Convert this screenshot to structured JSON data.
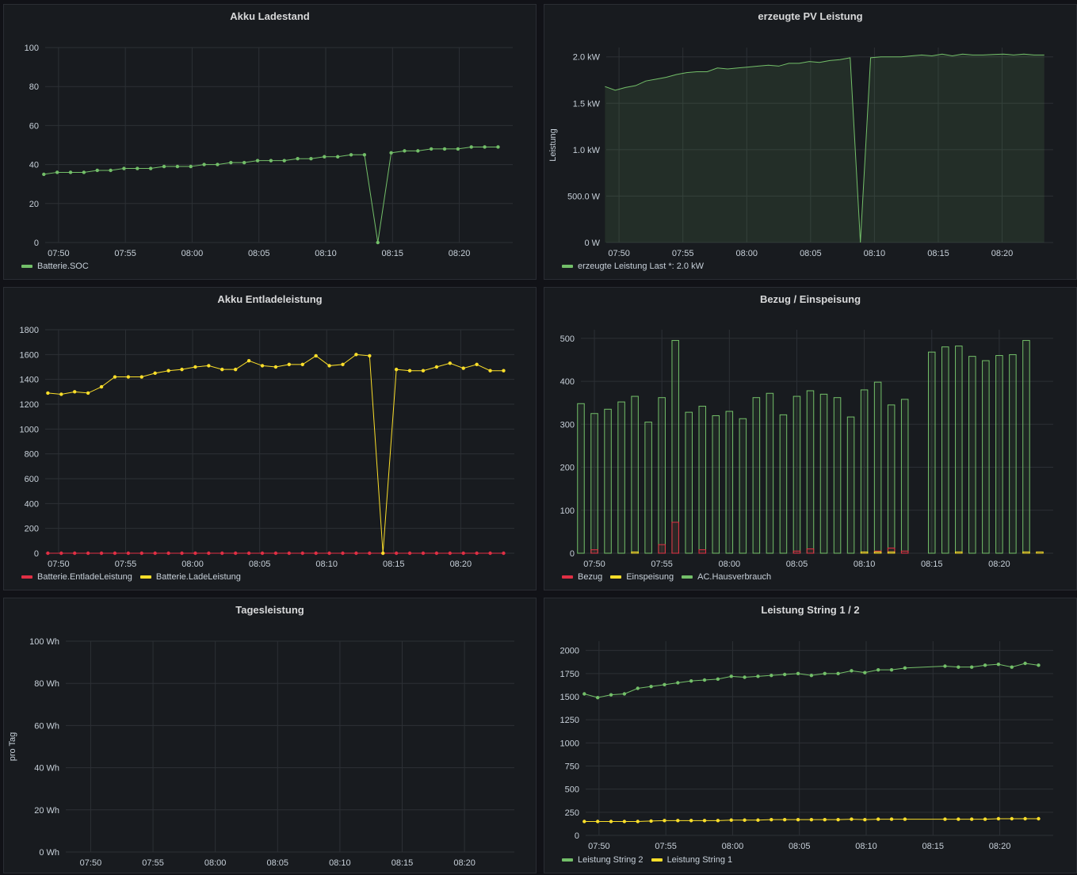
{
  "panels": [
    {
      "id": "p1",
      "title": "Akku Ladestand",
      "box": {
        "x": 4,
        "y": 5,
        "w": 673,
        "h": 348
      },
      "chart_data": {
        "type": "line",
        "title": "Akku Ladestand",
        "ylabel": "",
        "ylim": [
          0,
          100
        ],
        "yticks": [
          0,
          20,
          40,
          60,
          80,
          100
        ],
        "ytick_labels": [
          "0",
          "20",
          "40",
          "60",
          "80",
          "100"
        ],
        "xlim": [
          469,
          504
        ],
        "xticks": [
          470,
          475,
          480,
          485,
          490,
          495,
          500
        ],
        "xtick_labels": [
          "07:50",
          "07:55",
          "08:00",
          "08:05",
          "08:10",
          "08:15",
          "08:20"
        ],
        "legend_placement": "bottom-left",
        "series": [
          {
            "name": "Batterie.SOC",
            "color": "#73bf69",
            "points": true,
            "fill": false,
            "x": [
              468.9,
              469.9,
              470.9,
              471.9,
              472.9,
              473.9,
              474.9,
              475.9,
              476.9,
              477.9,
              478.9,
              479.9,
              480.9,
              481.9,
              482.9,
              483.9,
              484.9,
              485.9,
              486.9,
              487.9,
              488.9,
              489.9,
              490.9,
              491.9,
              492.9,
              493.9,
              494.9,
              495.9,
              496.9,
              497.9,
              498.9,
              499.9,
              500.9,
              501.9,
              502.9
            ],
            "y": [
              35,
              36,
              36,
              36,
              37,
              37,
              38,
              38,
              38,
              39,
              39,
              39,
              40,
              40,
              41,
              41,
              42,
              42,
              42,
              43,
              43,
              44,
              44,
              45,
              45,
              0,
              46,
              47,
              47,
              48,
              48,
              48,
              49,
              49,
              49
            ]
          }
        ]
      }
    },
    {
      "id": "p2",
      "title": "erzeugte PV Leistung",
      "box": {
        "x": 686,
        "y": 5,
        "w": 673,
        "h": 348
      },
      "chart_data": {
        "type": "area",
        "title": "erzeugte PV Leistung",
        "ylabel": "Leistung",
        "ylim": [
          0,
          2100
        ],
        "yticks": [
          0,
          500,
          1000,
          1500,
          2000
        ],
        "ytick_labels": [
          "0 W",
          "500.0 W",
          "1.0 kW",
          "1.5 kW",
          "2.0 kW"
        ],
        "xlim": [
          469,
          504
        ],
        "xticks": [
          470,
          475,
          480,
          485,
          490,
          495,
          500
        ],
        "xtick_labels": [
          "07:50",
          "07:55",
          "08:00",
          "08:05",
          "08:10",
          "08:15",
          "08:20"
        ],
        "legend_placement": "bottom-left",
        "series": [
          {
            "name": "erzeugte Leistung",
            "legend_extra": "Last *: 2.0 kW",
            "color": "#73bf69",
            "points": false,
            "fill": true,
            "x": [
              468.9,
              469.7,
              470.5,
              471.3,
              472.1,
              472.9,
              473.7,
              474.5,
              475.3,
              476.1,
              476.9,
              477.7,
              478.5,
              479.3,
              480.1,
              480.9,
              481.7,
              482.5,
              483.3,
              484.1,
              484.9,
              485.7,
              486.5,
              487.3,
              488.1,
              488.9,
              489.7,
              490.5,
              491.3,
              492.1,
              492.9,
              493.7,
              494.5,
              495.3,
              496.1,
              496.9,
              497.7,
              498.5,
              499.3,
              500.1,
              500.9,
              501.7,
              502.5,
              503.3
            ],
            "y": [
              1680,
              1640,
              1670,
              1690,
              1740,
              1760,
              1780,
              1810,
              1830,
              1840,
              1840,
              1880,
              1870,
              1880,
              1890,
              1900,
              1910,
              1900,
              1930,
              1930,
              1950,
              1940,
              1960,
              1970,
              1990,
              0,
              1990,
              2000,
              2000,
              2000,
              2010,
              2020,
              2010,
              2030,
              2010,
              2030,
              2020,
              2020,
              2025,
              2030,
              2020,
              2030,
              2020,
              2020
            ]
          }
        ]
      }
    },
    {
      "id": "p3",
      "title": "Akku Entladeleistung",
      "box": {
        "x": 4,
        "y": 362,
        "w": 673,
        "h": 383
      },
      "chart_data": {
        "type": "line",
        "title": "Akku Entladeleistung",
        "ylabel": "",
        "ylim": [
          0,
          1800
        ],
        "yticks": [
          0,
          200,
          400,
          600,
          800,
          1000,
          1200,
          1400,
          1600,
          1800
        ],
        "ytick_labels": [
          "0",
          "200",
          "400",
          "600",
          "800",
          "1000",
          "1200",
          "1400",
          "1600",
          "1800"
        ],
        "xlim": [
          469,
          504
        ],
        "xticks": [
          470,
          475,
          480,
          485,
          490,
          495,
          500
        ],
        "xtick_labels": [
          "07:50",
          "07:55",
          "08:00",
          "08:05",
          "08:10",
          "08:15",
          "08:20"
        ],
        "legend_placement": "bottom-left",
        "series": [
          {
            "name": "Batterie.EntladeLeistung",
            "color": "#e02f44",
            "points": true,
            "fill": false,
            "x": [
              469.2,
              470.2,
              471.2,
              472.2,
              473.2,
              474.2,
              475.2,
              476.2,
              477.2,
              478.2,
              479.2,
              480.2,
              481.2,
              482.2,
              483.2,
              484.2,
              485.2,
              486.2,
              487.2,
              488.2,
              489.2,
              490.2,
              491.2,
              492.2,
              493.2,
              494.2,
              495.2,
              496.2,
              497.2,
              498.2,
              499.2,
              500.2,
              501.2,
              502.2,
              503.2
            ],
            "y": [
              0,
              0,
              0,
              0,
              0,
              0,
              0,
              0,
              0,
              0,
              0,
              0,
              0,
              0,
              0,
              0,
              0,
              0,
              0,
              0,
              0,
              0,
              0,
              0,
              0,
              0,
              0,
              0,
              0,
              0,
              0,
              0,
              0,
              0,
              0
            ]
          },
          {
            "name": "Batterie.LadeLeistung",
            "color": "#fade2a",
            "points": true,
            "fill": false,
            "x": [
              469.2,
              470.2,
              471.2,
              472.2,
              473.2,
              474.2,
              475.2,
              476.2,
              477.2,
              478.2,
              479.2,
              480.2,
              481.2,
              482.2,
              483.2,
              484.2,
              485.2,
              486.2,
              487.2,
              488.2,
              489.2,
              490.2,
              491.2,
              492.2,
              493.2,
              494.2,
              495.2,
              496.2,
              497.2,
              498.2,
              499.2,
              500.2,
              501.2,
              502.2,
              503.2
            ],
            "y": [
              1290,
              1280,
              1300,
              1290,
              1340,
              1420,
              1420,
              1420,
              1450,
              1470,
              1480,
              1500,
              1510,
              1480,
              1480,
              1550,
              1510,
              1500,
              1520,
              1520,
              1590,
              1510,
              1520,
              1600,
              1590,
              0,
              1480,
              1470,
              1470,
              1500,
              1530,
              1490,
              1520,
              1470,
              1470
            ]
          }
        ]
      }
    },
    {
      "id": "p4",
      "title": "Bezug / Einspeisung",
      "box": {
        "x": 686,
        "y": 362,
        "w": 673,
        "h": 383
      },
      "chart_data": {
        "type": "bar",
        "title": "Bezug / Einspeisung",
        "ylabel": "",
        "ylim": [
          0,
          520
        ],
        "yticks": [
          0,
          100,
          200,
          300,
          400,
          500
        ],
        "ytick_labels": [
          "0",
          "100",
          "200",
          "300",
          "400",
          "500"
        ],
        "xlim": [
          469,
          504
        ],
        "xticks": [
          470,
          475,
          480,
          485,
          490,
          495,
          500
        ],
        "xtick_labels": [
          "07:50",
          "07:55",
          "08:00",
          "08:05",
          "08:10",
          "08:15",
          "08:20"
        ],
        "legend_placement": "bottom-left",
        "bar_x": [
          469.0,
          470.0,
          471.0,
          472.0,
          473.0,
          474.0,
          475.0,
          476.0,
          477.0,
          478.0,
          479.0,
          480.0,
          481.0,
          482.0,
          483.0,
          484.0,
          485.0,
          486.0,
          487.0,
          488.0,
          489.0,
          490.0,
          491.0,
          492.0,
          493.0,
          494.0,
          495.0,
          496.0,
          497.0,
          498.0,
          499.0,
          500.0,
          501.0,
          502.0,
          503.0
        ],
        "series": [
          {
            "name": "AC.Hausverbrauch",
            "color": "#73bf69",
            "values": [
              348,
              325,
              335,
              352,
              365,
              305,
              362,
              495,
              328,
              342,
              320,
              330,
              313,
              362,
              372,
              322,
              365,
              378,
              370,
              362,
              317,
              380,
              398,
              345,
              358,
              0,
              468,
              480,
              482,
              458,
              448,
              460,
              462,
              495,
              0
            ]
          },
          {
            "name": "Bezug",
            "color": "#e02f44",
            "values": [
              0,
              8,
              0,
              0,
              0,
              0,
              20,
              72,
              0,
              8,
              0,
              0,
              0,
              0,
              0,
              0,
              5,
              10,
              0,
              0,
              0,
              0,
              5,
              12,
              5,
              0,
              0,
              0,
              0,
              0,
              0,
              0,
              0,
              0,
              0
            ]
          },
          {
            "name": "Einspeisung",
            "color": "#fade2a",
            "values": [
              0,
              0,
              0,
              0,
              3,
              0,
              0,
              0,
              0,
              0,
              0,
              0,
              0,
              0,
              0,
              0,
              0,
              0,
              0,
              0,
              0,
              3,
              3,
              3,
              0,
              0,
              0,
              0,
              3,
              0,
              0,
              0,
              0,
              3,
              3
            ]
          }
        ],
        "legend_order": [
          "Bezug",
          "Einspeisung",
          "AC.Hausverbrauch"
        ]
      }
    },
    {
      "id": "p5",
      "title": "Tagesleistung",
      "box": {
        "x": 4,
        "y": 754,
        "w": 673,
        "h": 348
      },
      "chart_data": {
        "type": "line",
        "title": "Tagesleistung",
        "ylabel": "pro Tag",
        "ylim": [
          0,
          100
        ],
        "yticks": [
          0,
          20,
          40,
          60,
          80,
          100
        ],
        "ytick_labels": [
          "0 Wh",
          "20 Wh",
          "40 Wh",
          "60 Wh",
          "80 Wh",
          "100 Wh"
        ],
        "xlim": [
          468,
          504
        ],
        "xticks": [
          470,
          475,
          480,
          485,
          490,
          495,
          500
        ],
        "xtick_labels": [
          "07:50",
          "07:55",
          "08:00",
          "08:05",
          "08:10",
          "08:15",
          "08:20"
        ],
        "legend_placement": "none",
        "series": []
      }
    },
    {
      "id": "p6",
      "title": "Leistung String 1 / 2",
      "box": {
        "x": 686,
        "y": 754,
        "w": 673,
        "h": 348
      },
      "chart_data": {
        "type": "line",
        "title": "Leistung String 1 / 2",
        "ylabel": "",
        "ylim": [
          0,
          2100
        ],
        "yticks": [
          0,
          250,
          500,
          750,
          1000,
          1250,
          1500,
          1750,
          2000
        ],
        "ytick_labels": [
          "0",
          "250",
          "500",
          "750",
          "1000",
          "1250",
          "1500",
          "1750",
          "2000"
        ],
        "xlim": [
          469,
          504
        ],
        "xticks": [
          470,
          475,
          480,
          485,
          490,
          495,
          500
        ],
        "xtick_labels": [
          "07:50",
          "07:55",
          "08:00",
          "08:05",
          "08:10",
          "08:15",
          "08:20"
        ],
        "legend_placement": "bottom-left",
        "series": [
          {
            "name": "Leistung String 2",
            "color": "#73bf69",
            "points": true,
            "fill": false,
            "x": [
              468.9,
              469.9,
              470.9,
              471.9,
              472.9,
              473.9,
              474.9,
              475.9,
              476.9,
              477.9,
              478.9,
              479.9,
              480.9,
              481.9,
              482.9,
              483.9,
              484.9,
              485.9,
              486.9,
              487.9,
              488.9,
              489.9,
              490.9,
              491.9,
              492.9,
              495.9,
              496.9,
              497.9,
              498.9,
              499.9,
              500.9,
              501.9,
              502.9
            ],
            "y": [
              1530,
              1490,
              1520,
              1530,
              1590,
              1610,
              1630,
              1650,
              1670,
              1680,
              1690,
              1720,
              1710,
              1720,
              1730,
              1740,
              1750,
              1730,
              1750,
              1750,
              1780,
              1760,
              1790,
              1790,
              1810,
              1830,
              1820,
              1820,
              1840,
              1850,
              1820,
              1860,
              1840
            ]
          },
          {
            "name": "Leistung String 1",
            "color": "#fade2a",
            "points": true,
            "fill": false,
            "x": [
              468.9,
              469.9,
              470.9,
              471.9,
              472.9,
              473.9,
              474.9,
              475.9,
              476.9,
              477.9,
              478.9,
              479.9,
              480.9,
              481.9,
              482.9,
              483.9,
              484.9,
              485.9,
              486.9,
              487.9,
              488.9,
              489.9,
              490.9,
              491.9,
              492.9,
              495.9,
              496.9,
              497.9,
              498.9,
              499.9,
              500.9,
              501.9,
              502.9
            ],
            "y": [
              150,
              150,
              150,
              150,
              150,
              155,
              160,
              160,
              160,
              160,
              160,
              165,
              165,
              165,
              170,
              170,
              170,
              170,
              170,
              170,
              175,
              170,
              175,
              175,
              175,
              175,
              175,
              175,
              175,
              180,
              180,
              180,
              180
            ]
          }
        ]
      }
    }
  ]
}
